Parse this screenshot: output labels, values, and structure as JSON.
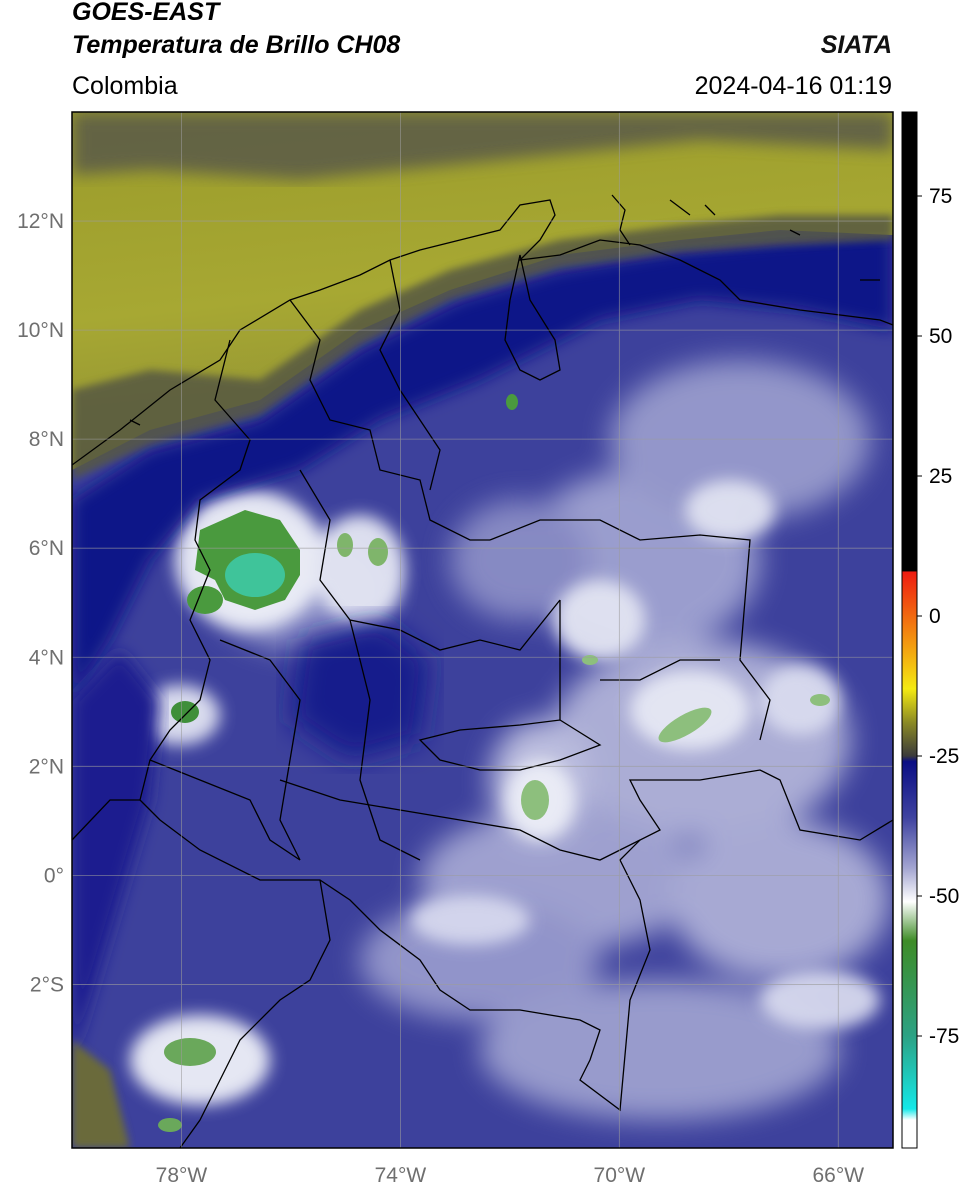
{
  "header": {
    "line1": "GOES-EAST",
    "line2": "Temperatura de Brillo CH08",
    "source": "SIATA",
    "region": "Colombia",
    "datetime": "2024-04-16 01:19"
  },
  "map": {
    "lon_range": [
      -80,
      -65
    ],
    "lat_range": [
      -5,
      14
    ],
    "lat_ticks": [
      {
        "value": 12,
        "label": "12°N"
      },
      {
        "value": 10,
        "label": "10°N"
      },
      {
        "value": 8,
        "label": "8°N"
      },
      {
        "value": 6,
        "label": "6°N"
      },
      {
        "value": 4,
        "label": "4°N"
      },
      {
        "value": 2,
        "label": "2°N"
      },
      {
        "value": 0,
        "label": "0°"
      },
      {
        "value": -2,
        "label": "2°S"
      }
    ],
    "lon_ticks": [
      {
        "value": -78,
        "label": "78°W"
      },
      {
        "value": -74,
        "label": "74°W"
      },
      {
        "value": -70,
        "label": "70°W"
      },
      {
        "value": -66,
        "label": "66°W"
      }
    ],
    "grid": true,
    "colors": {
      "dry_band": "#a3a42a",
      "dark_band": "#5c5c4a",
      "deep_blue": "#12168a",
      "mid_blue": "#3b3f9a",
      "light_blue": "#8c8fc6",
      "white_cloud": "#f1f1f8",
      "cold_green": "#3f8f3a",
      "cold_cyan": "#2fd3b0",
      "border": "#000000"
    }
  },
  "colorbar": {
    "label_ticks": [
      {
        "value": 75,
        "label": "75"
      },
      {
        "value": 50,
        "label": "50"
      },
      {
        "value": 25,
        "label": "25"
      },
      {
        "value": 0,
        "label": "0"
      },
      {
        "value": -25,
        "label": "-25"
      },
      {
        "value": -50,
        "label": "-50"
      },
      {
        "value": -75,
        "label": "-75"
      }
    ],
    "range": [
      -95,
      90
    ],
    "stops": [
      {
        "value": 90,
        "color": "#000000"
      },
      {
        "value": 8,
        "color": "#000000"
      },
      {
        "value": 7.9,
        "color": "#ee1b10"
      },
      {
        "value": -5,
        "color": "#f39a10"
      },
      {
        "value": -13,
        "color": "#f4ea12"
      },
      {
        "value": -19,
        "color": "#8b8a24"
      },
      {
        "value": -25,
        "color": "#3b3b3b"
      },
      {
        "value": -26,
        "color": "#0a0d84"
      },
      {
        "value": -36,
        "color": "#3f43a0"
      },
      {
        "value": -45,
        "color": "#a3a5d1"
      },
      {
        "value": -51,
        "color": "#ffffff"
      },
      {
        "value": -58,
        "color": "#3e8c27"
      },
      {
        "value": -75,
        "color": "#2ca284"
      },
      {
        "value": -88,
        "color": "#14e8e8"
      },
      {
        "value": -90,
        "color": "#ffffff"
      },
      {
        "value": -95,
        "color": "#ffffff"
      }
    ]
  }
}
